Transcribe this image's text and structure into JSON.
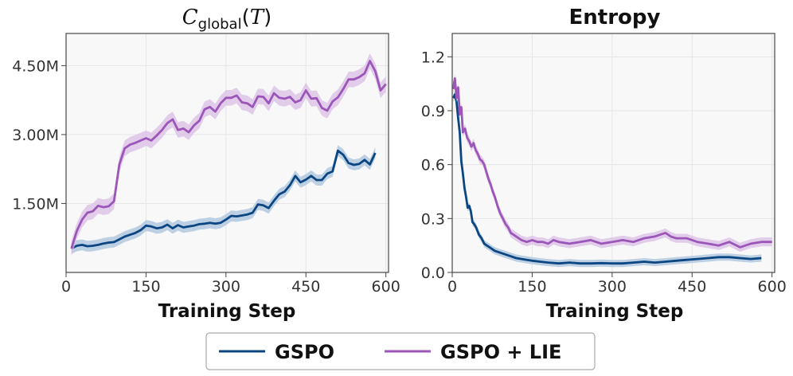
{
  "colors": {
    "gspo": "#0b4582",
    "gspo_lie": "#9c55b8",
    "gspo_band": "#a9c3dc",
    "gspo_lie_band": "#d9bfe6"
  },
  "legend": {
    "items": [
      "GSPO",
      "GSPO + LIE"
    ]
  },
  "chart_data": [
    {
      "type": "line",
      "title_main": "C",
      "title_sub": "global",
      "title_open": "(",
      "title_arg": "T",
      "title_close": ")",
      "xlabel": "Training Step",
      "ylabel": "",
      "xlim": [
        0,
        605
      ],
      "ylim": [
        0,
        5200000
      ],
      "x_ticks": [
        0,
        150,
        300,
        450,
        600
      ],
      "x_tick_labels": [
        "0",
        "150",
        "300",
        "450",
        "600"
      ],
      "y_ticks": [
        1500000,
        3000000,
        4500000
      ],
      "y_tick_labels": [
        "1.50M",
        "3.00M",
        "4.50M"
      ],
      "grid": true,
      "series": [
        {
          "name": "GSPO",
          "x": [
            10,
            20,
            30,
            40,
            50,
            60,
            70,
            80,
            90,
            100,
            110,
            120,
            130,
            140,
            150,
            160,
            170,
            180,
            190,
            200,
            210,
            220,
            230,
            240,
            250,
            260,
            270,
            280,
            290,
            300,
            310,
            320,
            330,
            340,
            350,
            360,
            370,
            380,
            390,
            400,
            410,
            420,
            430,
            440,
            450,
            460,
            470,
            480,
            490,
            500,
            510,
            520,
            530,
            540,
            550,
            560,
            570,
            580
          ],
          "values": [
            520000,
            580000,
            600000,
            570000,
            580000,
            600000,
            630000,
            650000,
            660000,
            720000,
            780000,
            820000,
            860000,
            920000,
            1020000,
            1000000,
            960000,
            980000,
            1040000,
            960000,
            1030000,
            980000,
            1000000,
            1020000,
            1050000,
            1060000,
            1080000,
            1060000,
            1080000,
            1150000,
            1230000,
            1220000,
            1240000,
            1260000,
            1300000,
            1480000,
            1460000,
            1400000,
            1560000,
            1700000,
            1760000,
            1900000,
            2100000,
            1960000,
            2020000,
            2100000,
            2010000,
            2010000,
            2150000,
            2200000,
            2650000,
            2560000,
            2380000,
            2340000,
            2360000,
            2450000,
            2350000,
            2600000
          ],
          "band": 120000
        },
        {
          "name": "GSPO + LIE",
          "x": [
            10,
            20,
            30,
            40,
            50,
            60,
            70,
            80,
            90,
            100,
            110,
            120,
            130,
            140,
            150,
            160,
            170,
            180,
            190,
            200,
            210,
            220,
            230,
            240,
            250,
            260,
            270,
            280,
            290,
            300,
            310,
            320,
            330,
            340,
            350,
            360,
            370,
            380,
            390,
            400,
            410,
            420,
            430,
            440,
            450,
            460,
            470,
            480,
            490,
            500,
            510,
            520,
            530,
            540,
            550,
            560,
            570,
            580,
            590,
            600
          ],
          "values": [
            520000,
            900000,
            1150000,
            1300000,
            1330000,
            1450000,
            1420000,
            1440000,
            1550000,
            2350000,
            2700000,
            2780000,
            2820000,
            2870000,
            2920000,
            2870000,
            2980000,
            3100000,
            3250000,
            3330000,
            3100000,
            3130000,
            3050000,
            3200000,
            3300000,
            3550000,
            3600000,
            3500000,
            3680000,
            3800000,
            3800000,
            3850000,
            3700000,
            3680000,
            3600000,
            3830000,
            3820000,
            3680000,
            3900000,
            3800000,
            3780000,
            3820000,
            3700000,
            3750000,
            3960000,
            3780000,
            3790000,
            3580000,
            3520000,
            3720000,
            3810000,
            3990000,
            4200000,
            4200000,
            4250000,
            4330000,
            4600000,
            4380000,
            3960000,
            4100000
          ],
          "band": 170000
        }
      ]
    },
    {
      "type": "line",
      "title": "Entropy",
      "xlabel": "Training Step",
      "ylabel": "",
      "xlim": [
        0,
        605
      ],
      "ylim": [
        0,
        1.33
      ],
      "x_ticks": [
        0,
        150,
        300,
        450,
        600
      ],
      "x_tick_labels": [
        "0",
        "150",
        "300",
        "450",
        "600"
      ],
      "y_ticks": [
        0,
        0.3,
        0.6,
        0.9,
        1.2
      ],
      "y_tick_labels": [
        "0.0",
        "0.3",
        "0.6",
        "0.9",
        "1.2"
      ],
      "grid": true,
      "series": [
        {
          "name": "GSPO",
          "x": [
            2,
            5,
            8,
            11,
            14,
            17,
            20,
            23,
            26,
            29,
            32,
            35,
            38,
            41,
            45,
            50,
            55,
            60,
            65,
            70,
            75,
            80,
            90,
            100,
            110,
            120,
            130,
            140,
            150,
            165,
            180,
            200,
            220,
            240,
            260,
            280,
            300,
            320,
            340,
            360,
            380,
            400,
            420,
            440,
            460,
            480,
            500,
            520,
            540,
            560,
            580
          ],
          "values": [
            0.97,
            0.99,
            0.95,
            0.86,
            0.78,
            0.62,
            0.55,
            0.47,
            0.42,
            0.36,
            0.37,
            0.34,
            0.28,
            0.27,
            0.25,
            0.21,
            0.19,
            0.16,
            0.15,
            0.14,
            0.13,
            0.12,
            0.11,
            0.1,
            0.09,
            0.08,
            0.075,
            0.07,
            0.065,
            0.06,
            0.055,
            0.05,
            0.055,
            0.05,
            0.05,
            0.052,
            0.05,
            0.05,
            0.055,
            0.06,
            0.055,
            0.06,
            0.065,
            0.07,
            0.075,
            0.08,
            0.085,
            0.085,
            0.08,
            0.075,
            0.08
          ],
          "band": 0.02
        },
        {
          "name": "GSPO + LIE",
          "x": [
            2,
            5,
            8,
            11,
            14,
            17,
            20,
            24,
            28,
            32,
            36,
            40,
            44,
            48,
            52,
            56,
            60,
            64,
            68,
            72,
            76,
            80,
            85,
            90,
            95,
            100,
            105,
            110,
            115,
            120,
            130,
            140,
            150,
            160,
            170,
            180,
            190,
            200,
            220,
            240,
            260,
            280,
            300,
            320,
            340,
            360,
            380,
            390,
            400,
            410,
            420,
            440,
            460,
            480,
            500,
            520,
            540,
            560,
            580,
            600
          ],
          "values": [
            1.02,
            1.08,
            0.97,
            1.03,
            0.88,
            0.92,
            0.78,
            0.8,
            0.75,
            0.73,
            0.7,
            0.72,
            0.68,
            0.66,
            0.63,
            0.62,
            0.6,
            0.56,
            0.52,
            0.49,
            0.45,
            0.42,
            0.37,
            0.33,
            0.3,
            0.27,
            0.25,
            0.22,
            0.21,
            0.2,
            0.18,
            0.17,
            0.18,
            0.17,
            0.17,
            0.16,
            0.18,
            0.17,
            0.16,
            0.17,
            0.18,
            0.16,
            0.17,
            0.18,
            0.17,
            0.19,
            0.2,
            0.21,
            0.22,
            0.2,
            0.19,
            0.19,
            0.17,
            0.16,
            0.15,
            0.17,
            0.14,
            0.16,
            0.17,
            0.17
          ],
          "band": 0.025
        }
      ]
    }
  ]
}
